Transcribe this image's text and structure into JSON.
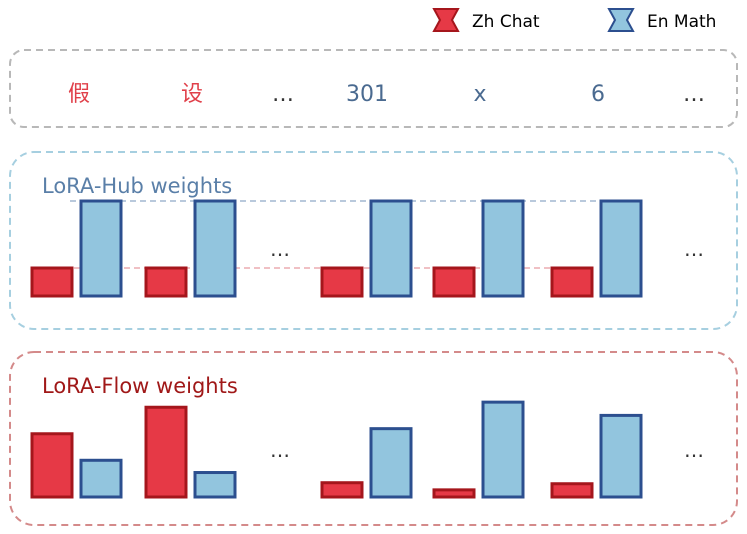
{
  "legend": [
    {
      "label": "Zh Chat",
      "icon": "hourglass-red-icon",
      "color": "#e63946"
    },
    {
      "label": "En Math",
      "icon": "hourglass-blue-icon",
      "color": "#92c5de"
    }
  ],
  "tokens": [
    "假",
    "设",
    "…",
    "301",
    "x",
    "6",
    "…"
  ],
  "panels": {
    "hub": {
      "label": "LoRA-Hub weights",
      "border_color": "#a6cfe0",
      "label_color": "#5a7fa8",
      "groups": [
        {
          "zh": 0.28,
          "en": 0.95
        },
        {
          "zh": 0.28,
          "en": 0.95
        },
        {
          "ellipsis": "…"
        },
        {
          "zh": 0.28,
          "en": 0.95
        },
        {
          "zh": 0.28,
          "en": 0.95
        },
        {
          "zh": 0.28,
          "en": 0.95
        },
        {
          "ellipsis": "…"
        }
      ]
    },
    "flow": {
      "label": "LoRA-Flow weights",
      "border_color": "#d48a8a",
      "label_color": "#a01818",
      "groups": [
        {
          "zh": 0.62,
          "en": 0.36
        },
        {
          "zh": 0.88,
          "en": 0.24
        },
        {
          "ellipsis": "…"
        },
        {
          "zh": 0.14,
          "en": 0.67
        },
        {
          "zh": 0.07,
          "en": 0.93
        },
        {
          "zh": 0.13,
          "en": 0.8
        },
        {
          "ellipsis": "…"
        }
      ]
    }
  },
  "colors": {
    "zh_fill": "#e63946",
    "zh_stroke": "#a5161c",
    "en_fill": "#92c5de",
    "en_stroke": "#2c4f8f",
    "token_red": "#e0404a",
    "token_blue": "#4a6a90"
  }
}
